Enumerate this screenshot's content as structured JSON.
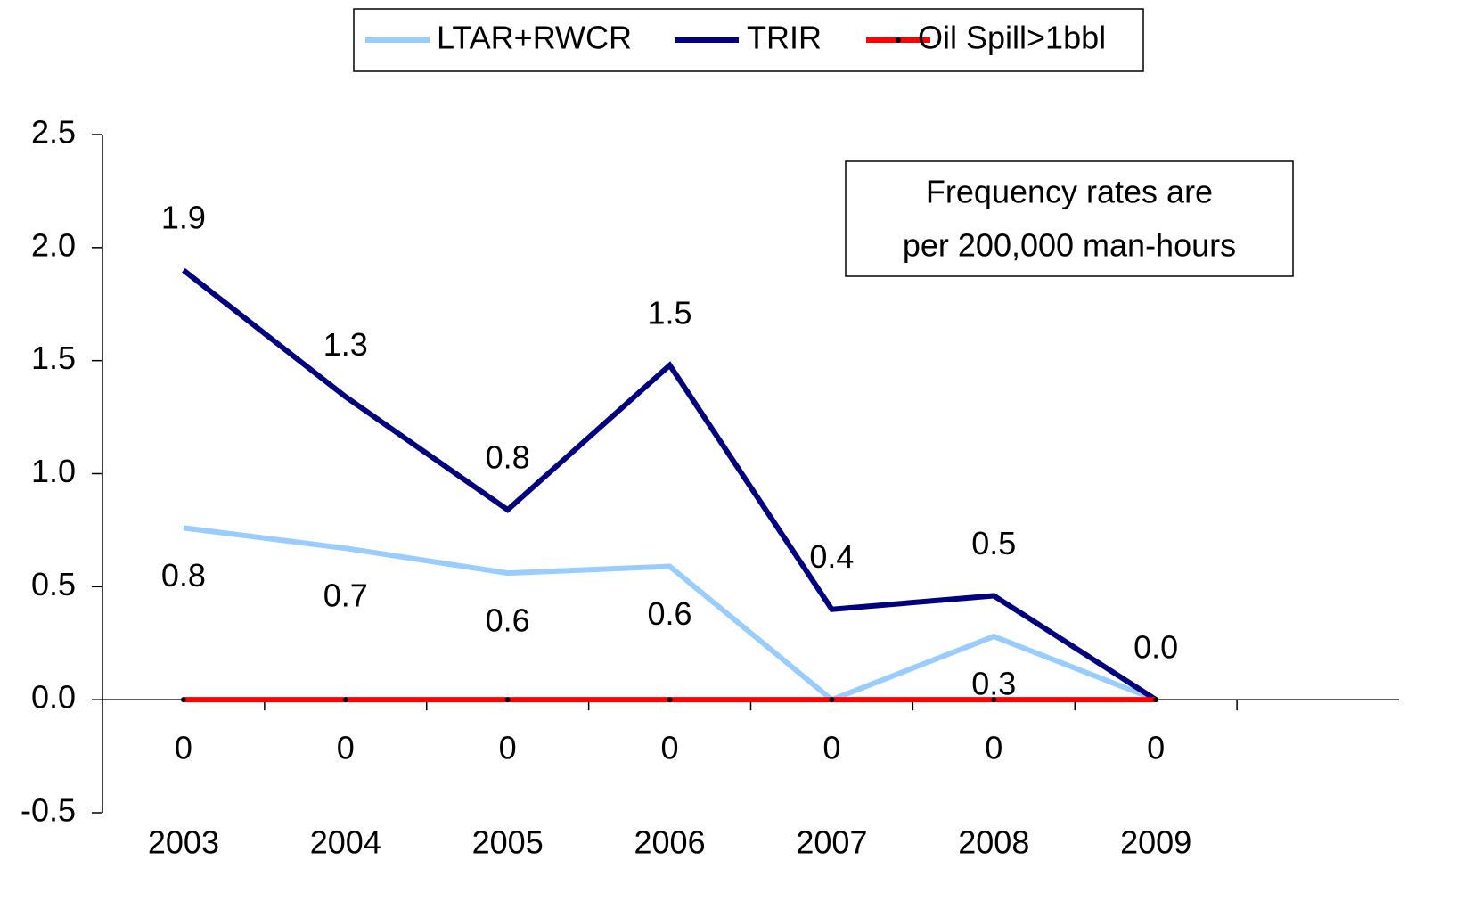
{
  "chart_data": {
    "type": "line",
    "categories": [
      "2003",
      "2004",
      "2005",
      "2006",
      "2007",
      "2008",
      "2009",
      null
    ],
    "series": [
      {
        "name": "LTAR+RWCR",
        "color": "#99ccff",
        "values": [
          0.76,
          0.67,
          0.56,
          0.59,
          0.0,
          0.28,
          0.0,
          null
        ],
        "value_labels": [
          "0.8",
          "0.7",
          "0.6",
          "0.6",
          null,
          "0.3",
          null,
          null
        ]
      },
      {
        "name": "TRIR",
        "color": "#000080",
        "values": [
          1.9,
          1.34,
          0.84,
          1.48,
          0.4,
          0.46,
          0.0,
          null
        ],
        "value_labels": [
          "1.9",
          "1.3",
          "0.8",
          "1.5",
          "0.4",
          "0.5",
          "0.0",
          null
        ]
      },
      {
        "name": "Oil Spill>1bbl",
        "color": "#ff0000",
        "marker_color": "#000000",
        "values": [
          0,
          0,
          0,
          0,
          0,
          0,
          0,
          null
        ]
      }
    ],
    "ylim": [
      -0.5,
      2.5
    ],
    "yticks": [
      -0.5,
      {
        "value": 0,
        "label": "0.0"
      },
      0.5,
      {
        "value": 1,
        "label": "1.0"
      },
      1.5,
      {
        "value": 2,
        "label": "2.0"
      },
      2.5
    ],
    "annotation": [
      "Frequency rates are",
      "per 200,000 man-hours"
    ],
    "legend": "top"
  }
}
